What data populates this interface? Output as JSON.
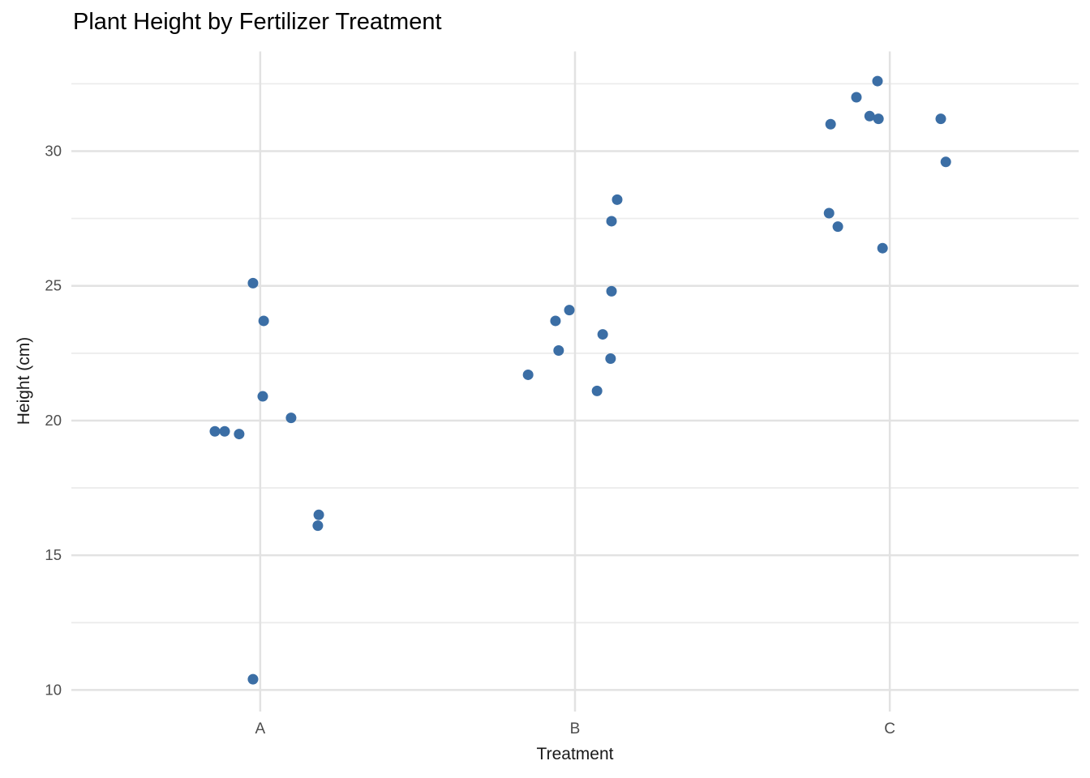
{
  "chart_data": {
    "type": "scatter",
    "title": "Plant Height by Fertilizer Treatment",
    "xlabel": "Treatment",
    "ylabel": "Height (cm)",
    "categories": [
      "A",
      "B",
      "C"
    ],
    "ylim": [
      9.2,
      33.7
    ],
    "yticks_major": [
      10,
      15,
      20,
      25,
      30
    ],
    "yticks_minor": [
      12.5,
      17.5,
      22.5,
      27.5,
      32.5
    ],
    "grid": "horizontal major+minor, vertical major only, light gray on white",
    "legend_position": "none",
    "point_color": "#3B6EA5",
    "tick_label_color": "#4d4d4d",
    "gridline_major_color": "#e2e2e2",
    "gridline_minor_color": "#ececec",
    "points": [
      {
        "treatment": "A",
        "height": 25.1,
        "jitter": -0.023
      },
      {
        "treatment": "A",
        "height": 23.7,
        "jitter": 0.011
      },
      {
        "treatment": "A",
        "height": 20.9,
        "jitter": 0.008
      },
      {
        "treatment": "A",
        "height": 20.1,
        "jitter": 0.098
      },
      {
        "treatment": "A",
        "height": 19.6,
        "jitter": -0.144
      },
      {
        "treatment": "A",
        "height": 19.6,
        "jitter": -0.113
      },
      {
        "treatment": "A",
        "height": 19.5,
        "jitter": -0.067
      },
      {
        "treatment": "A",
        "height": 16.5,
        "jitter": 0.186
      },
      {
        "treatment": "A",
        "height": 16.1,
        "jitter": 0.183
      },
      {
        "treatment": "A",
        "height": 10.4,
        "jitter": -0.023
      },
      {
        "treatment": "B",
        "height": 28.2,
        "jitter": 0.134
      },
      {
        "treatment": "B",
        "height": 27.4,
        "jitter": 0.116
      },
      {
        "treatment": "B",
        "height": 24.8,
        "jitter": 0.116
      },
      {
        "treatment": "B",
        "height": 24.1,
        "jitter": -0.018
      },
      {
        "treatment": "B",
        "height": 23.7,
        "jitter": -0.062
      },
      {
        "treatment": "B",
        "height": 23.2,
        "jitter": 0.088
      },
      {
        "treatment": "B",
        "height": 22.6,
        "jitter": -0.052
      },
      {
        "treatment": "B",
        "height": 22.3,
        "jitter": 0.113
      },
      {
        "treatment": "B",
        "height": 21.7,
        "jitter": -0.149
      },
      {
        "treatment": "B",
        "height": 21.1,
        "jitter": 0.07
      },
      {
        "treatment": "C",
        "height": 32.6,
        "jitter": -0.039
      },
      {
        "treatment": "C",
        "height": 32.0,
        "jitter": -0.106
      },
      {
        "treatment": "C",
        "height": 31.3,
        "jitter": -0.064
      },
      {
        "treatment": "C",
        "height": 31.2,
        "jitter": -0.036
      },
      {
        "treatment": "C",
        "height": 31.0,
        "jitter": -0.188
      },
      {
        "treatment": "C",
        "height": 31.2,
        "jitter": 0.162
      },
      {
        "treatment": "C",
        "height": 29.6,
        "jitter": 0.178
      },
      {
        "treatment": "C",
        "height": 27.7,
        "jitter": -0.193
      },
      {
        "treatment": "C",
        "height": 27.2,
        "jitter": -0.165
      },
      {
        "treatment": "C",
        "height": 26.4,
        "jitter": -0.023
      }
    ]
  }
}
